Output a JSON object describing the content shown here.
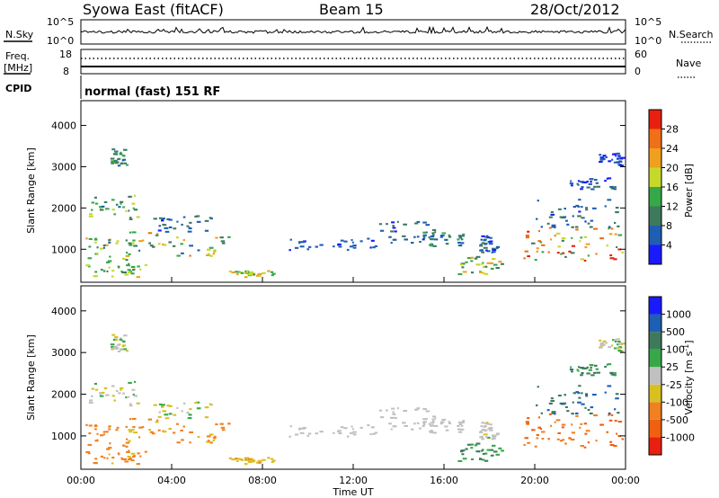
{
  "header": {
    "title": "Syowa East (fitACF)",
    "beam": "Beam 15",
    "date": "28/Oct/2012"
  },
  "status_panels": {
    "nsky_label": "N.Sky",
    "nsky_ticks": [
      "10^5",
      "10^0"
    ],
    "nsearch_label": "N.Search",
    "nsearch_ticks": [
      "10^5",
      "10^0"
    ],
    "freq_label": "Freq.",
    "freq_unit": "[MHz]",
    "freq_ticks": [
      "18",
      "8"
    ],
    "nave_label": "Nave",
    "nave_ticks": [
      "60",
      "0"
    ],
    "cpid_label": "CPID",
    "cpid_value": "normal (fast) 151 RF"
  },
  "chart_data": [
    {
      "type": "heatmap",
      "name": "Power",
      "ylabel": "Slant Range [km]",
      "ylim": [
        200,
        4600
      ],
      "yticks": [
        "1000",
        "2000",
        "3000",
        "4000"
      ],
      "ytick_values": [
        1000,
        2000,
        3000,
        4000
      ],
      "xlim": [
        0,
        24
      ],
      "colorbar": {
        "label": "Power [dB]",
        "tick_labels": [
          "4",
          "8",
          "12",
          "16",
          "20",
          "24",
          "28"
        ],
        "tick_values": [
          4,
          8,
          12,
          16,
          20,
          24,
          28
        ],
        "range": [
          2,
          30
        ],
        "colors": [
          "#1a1aff",
          "#1e5fb3",
          "#3d7a5c",
          "#36a848",
          "#c6d92a",
          "#f0a020",
          "#f07018",
          "#e82010"
        ]
      }
    },
    {
      "type": "heatmap",
      "name": "Velocity",
      "ylabel": "Slant Range [km]",
      "ylim": [
        200,
        4600
      ],
      "yticks": [
        "1000",
        "2000",
        "3000",
        "4000"
      ],
      "ytick_values": [
        1000,
        2000,
        3000,
        4000
      ],
      "xlim": [
        0,
        24
      ],
      "xlabel": "Time UT",
      "xticks": [
        "00:00",
        "04:00",
        "08:00",
        "12:00",
        "16:00",
        "20:00",
        "00:00"
      ],
      "xtick_values": [
        0,
        4,
        8,
        12,
        16,
        20,
        24
      ],
      "colorbar": {
        "label": "Velocity [m s",
        "label_sup": "-1",
        "label_end": "]",
        "tick_labels": [
          "1000",
          "500",
          "100",
          "25",
          "-25",
          "-100",
          "-500",
          "-1000"
        ],
        "colors": [
          "#1a1aff",
          "#1e5fb3",
          "#3d7a5c",
          "#36a848",
          "#c0c0c0",
          "#d8c020",
          "#f08020",
          "#f06010",
          "#e82010"
        ]
      }
    }
  ]
}
